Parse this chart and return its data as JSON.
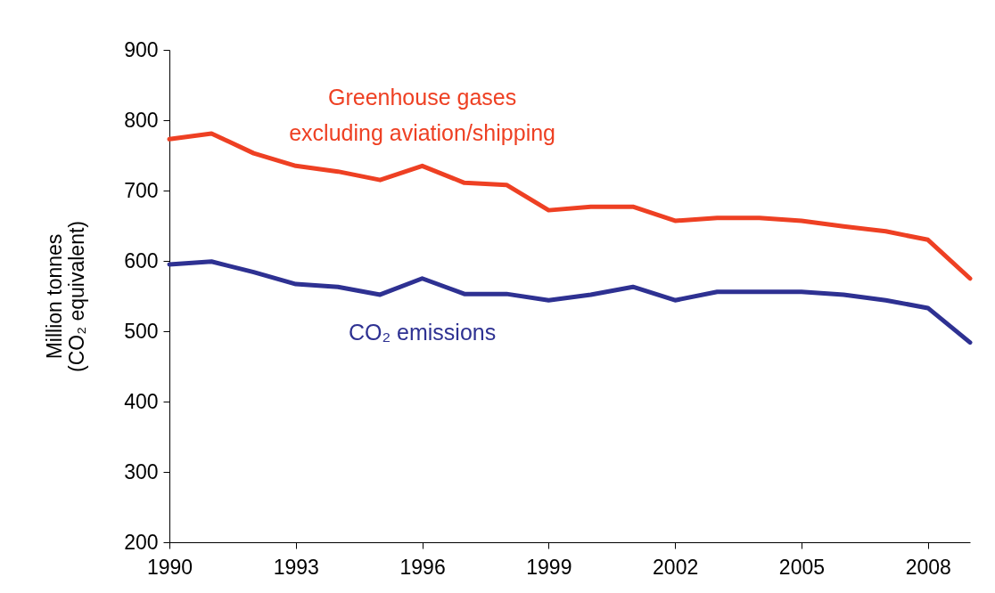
{
  "chart_data": {
    "type": "line",
    "ylabel": "Million tonnes (CO₂ equivalent)",
    "x": [
      1990,
      1991,
      1992,
      1993,
      1994,
      1995,
      1996,
      1997,
      1998,
      1999,
      2000,
      2001,
      2002,
      2003,
      2004,
      2005,
      2006,
      2007,
      2008,
      2009
    ],
    "xlim": [
      1990,
      2009
    ],
    "xticks": [
      1990,
      1993,
      1996,
      1999,
      2002,
      2005,
      2008
    ],
    "ylim": [
      200,
      900
    ],
    "yticks": [
      200,
      300,
      400,
      500,
      600,
      700,
      800,
      900
    ],
    "series": [
      {
        "name": "Greenhouse gases excluding aviation/shipping",
        "color": "#ee4023",
        "values": [
          773,
          781,
          753,
          735,
          727,
          715,
          735,
          711,
          708,
          672,
          677,
          677,
          657,
          661,
          661,
          657,
          649,
          642,
          630,
          575
        ]
      },
      {
        "name": "CO₂ emissions",
        "color": "#2e3192",
        "values": [
          595,
          599,
          584,
          567,
          563,
          552,
          575,
          553,
          553,
          544,
          552,
          563,
          544,
          556,
          556,
          556,
          552,
          544,
          533,
          484
        ]
      }
    ],
    "grid": false,
    "marker": "none",
    "line_style": "solid"
  }
}
